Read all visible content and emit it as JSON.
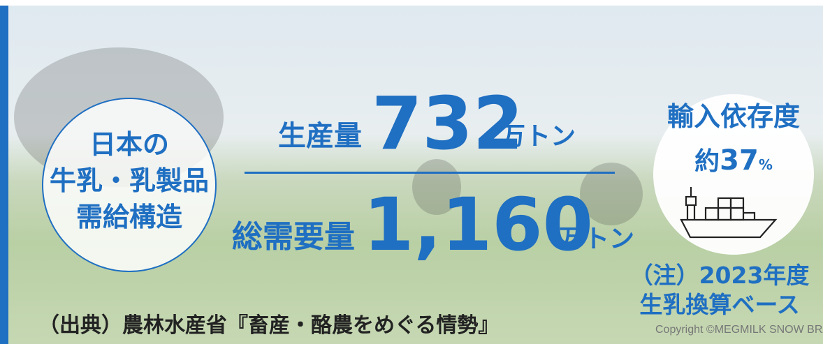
{
  "title": {
    "lines": [
      "日本の",
      "牛乳・乳製品",
      "需給構造"
    ]
  },
  "production": {
    "label": "生産量",
    "value": "732",
    "unit": "万トン"
  },
  "demand": {
    "label": "総需要量",
    "value": "1,160",
    "unit": "万トン"
  },
  "import": {
    "label": "輸入依存度",
    "prefix": "約",
    "value": "37",
    "unit": "%"
  },
  "note": {
    "lines": [
      "（注）2023年度",
      "生乳換算ベース"
    ]
  },
  "source": "（出典）農林水産省『畜産・酪農をめぐる情勢』",
  "copyright": "Copyright ©MEGMILK SNOW BRAND"
}
